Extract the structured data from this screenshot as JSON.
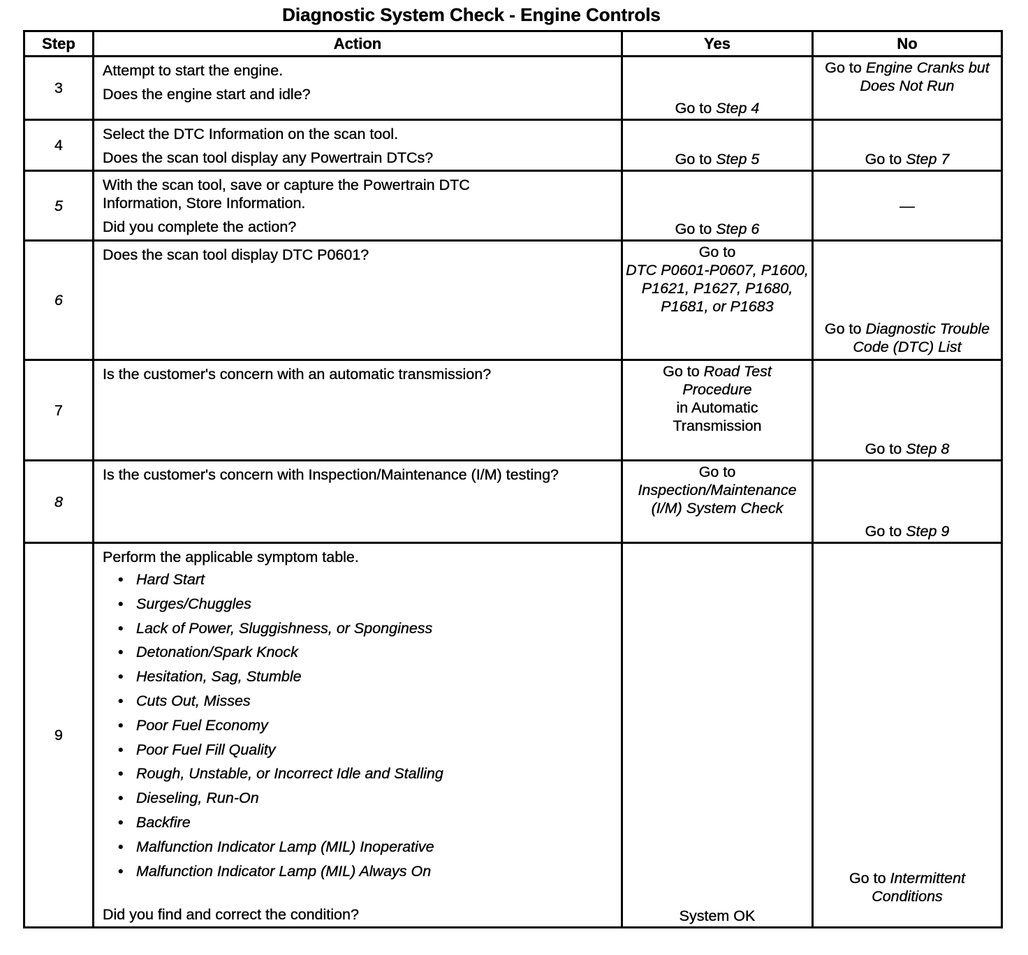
{
  "title": "Diagnostic System Check - Engine Controls",
  "headers": {
    "step": "Step",
    "action": "Action",
    "yes": "Yes",
    "no": "No"
  },
  "rows": [
    {
      "step": "3",
      "action": [
        "Attempt to start the engine.",
        "Does the engine start and idle?"
      ],
      "yes": {
        "pre": "Go to ",
        "it": "Step 4"
      },
      "no": {
        "pre": "Go to ",
        "it": "Engine Cranks but Does Not Run"
      }
    },
    {
      "step": "4",
      "action": [
        "Select the DTC Information on the scan tool.",
        "Does the scan tool display any Powertrain DTCs?"
      ],
      "yes": {
        "pre": "Go to ",
        "it": "Step 5"
      },
      "no": {
        "pre": "Go to ",
        "it": "Step 7"
      }
    },
    {
      "step": "5",
      "action": [
        "With the scan tool, save or capture the Powertrain DTC Information, Store Information.",
        "Did you complete the action?"
      ],
      "yes": {
        "pre": "Go to ",
        "it": "Step 6"
      },
      "no": {
        "pre": "—",
        "it": ""
      }
    },
    {
      "step": "6",
      "action": [
        "Does the scan tool display DTC P0601?"
      ],
      "yes": {
        "pre": "Go to",
        "it": "DTC P0601-P0607, P1600, P1621, P1627, P1680, P1681, or P1683"
      },
      "no": {
        "pre": "Go to ",
        "it": "Diagnostic Trouble Code (DTC) List"
      }
    },
    {
      "step": "7",
      "action": [
        "Is the customer's concern with an automatic transmission?"
      ],
      "yes": {
        "pre": "Go to ",
        "it": "Road Test Procedure",
        "post": "in Automatic Transmission"
      },
      "no": {
        "pre": "Go to ",
        "it": "Step 8"
      }
    },
    {
      "step": "8",
      "action": [
        "Is the customer's concern with Inspection/Maintenance (I/M) testing?"
      ],
      "yes": {
        "pre": "Go to",
        "it": "Inspection/Maintenance (I/M) System Check"
      },
      "no": {
        "pre": "Go to ",
        "it": "Step 9"
      }
    },
    {
      "step": "9",
      "action": [
        "Perform the applicable symptom table.",
        "Did you find and correct the condition?"
      ],
      "symptoms": [
        "Hard Start",
        "Surges/Chuggles",
        "Lack of Power, Sluggishness, or Sponginess",
        "Detonation/Spark Knock",
        "Hesitation, Sag, Stumble",
        "Cuts Out, Misses",
        "Poor Fuel Economy",
        "Poor Fuel Fill Quality",
        "Rough, Unstable, or Incorrect Idle and Stalling",
        "Dieseling, Run-On",
        "Backfire",
        "Malfunction Indicator Lamp (MIL) Inoperative",
        "Malfunction Indicator Lamp (MIL) Always On"
      ],
      "yes": {
        "pre": "System OK",
        "it": ""
      },
      "no": {
        "pre": "Go to ",
        "it": "Intermittent Conditions"
      }
    }
  ]
}
